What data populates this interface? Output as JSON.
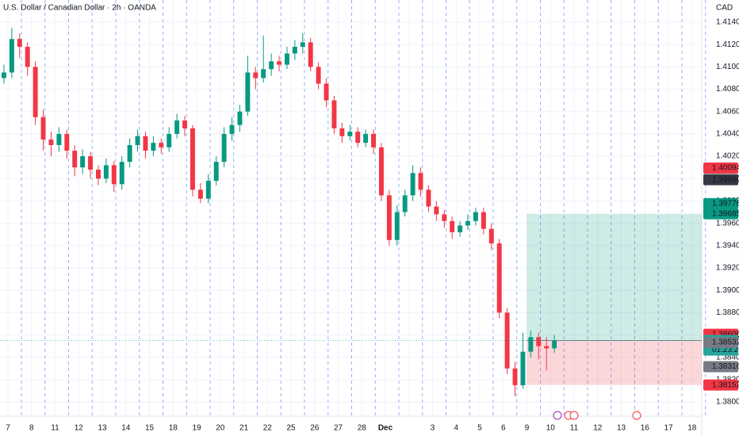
{
  "chart_data": {
    "type": "candlestick",
    "title": "U.S. Dollar / Canadian Dollar · 2h · OANDA",
    "currency": "CAD",
    "categories": [
      "7",
      "8",
      "11",
      "12",
      "13",
      "14",
      "15",
      "18",
      "19",
      "20",
      "21",
      "22",
      "25",
      "26",
      "27",
      "28",
      "Dec",
      null,
      "3",
      "4",
      "5",
      "6",
      "9",
      "10",
      "11",
      "12",
      "13",
      "16",
      "17",
      "18"
    ],
    "candles_per_category": 3,
    "up_color": "#089981",
    "down_color": "#f23645",
    "ohlc": [
      [
        1.409,
        1.4102,
        1.4085,
        1.4095
      ],
      [
        1.4095,
        1.4135,
        1.409,
        1.4125
      ],
      [
        1.4125,
        1.413,
        1.4108,
        1.4118
      ],
      [
        1.4118,
        1.4122,
        1.4092,
        1.41
      ],
      [
        1.41,
        1.4105,
        1.4048,
        1.4055
      ],
      [
        1.4055,
        1.4062,
        1.4025,
        1.4035
      ],
      [
        1.4035,
        1.4042,
        1.402,
        1.403
      ],
      [
        1.403,
        1.4046,
        1.4024,
        1.404
      ],
      [
        1.404,
        1.4044,
        1.4018,
        1.4025
      ],
      [
        1.4025,
        1.403,
        1.4002,
        1.401
      ],
      [
        1.401,
        1.4026,
        1.4004,
        1.402
      ],
      [
        1.402,
        1.4024,
        1.4,
        1.4008
      ],
      [
        1.4008,
        1.4012,
        1.3994,
        1.4
      ],
      [
        1.4,
        1.4018,
        1.3996,
        1.4012
      ],
      [
        1.4012,
        1.4016,
        1.3988,
        1.3995
      ],
      [
        1.3995,
        1.402,
        1.399,
        1.4015
      ],
      [
        1.4015,
        1.4036,
        1.401,
        1.403
      ],
      [
        1.403,
        1.4044,
        1.4024,
        1.4038
      ],
      [
        1.4038,
        1.4042,
        1.4018,
        1.4025
      ],
      [
        1.4025,
        1.4038,
        1.402,
        1.4032
      ],
      [
        1.4032,
        1.4036,
        1.4022,
        1.4028
      ],
      [
        1.4028,
        1.4046,
        1.4024,
        1.404
      ],
      [
        1.404,
        1.4058,
        1.4036,
        1.4052
      ],
      [
        1.4052,
        1.4056,
        1.4038,
        1.4045
      ],
      [
        1.4045,
        1.4048,
        1.3984,
        1.399
      ],
      [
        1.399,
        1.3996,
        1.3978,
        1.3982
      ],
      [
        1.3982,
        1.4004,
        1.3978,
        1.3998
      ],
      [
        1.3998,
        1.402,
        1.3994,
        1.4015
      ],
      [
        1.4015,
        1.4046,
        1.401,
        1.404
      ],
      [
        1.404,
        1.4055,
        1.4034,
        1.4048
      ],
      [
        1.4048,
        1.4066,
        1.4042,
        1.406
      ],
      [
        1.406,
        1.411,
        1.4056,
        1.4095
      ],
      [
        1.4095,
        1.41,
        1.408,
        1.409
      ],
      [
        1.409,
        1.4128,
        1.4086,
        1.4098
      ],
      [
        1.4098,
        1.4112,
        1.4092,
        1.4105
      ],
      [
        1.4105,
        1.411,
        1.4096,
        1.4102
      ],
      [
        1.4102,
        1.4118,
        1.4098,
        1.4112
      ],
      [
        1.4112,
        1.4124,
        1.4106,
        1.4118
      ],
      [
        1.4118,
        1.413,
        1.4112,
        1.4122
      ],
      [
        1.4122,
        1.4126,
        1.4096,
        1.41
      ],
      [
        1.41,
        1.4104,
        1.408,
        1.4085
      ],
      [
        1.4085,
        1.409,
        1.4064,
        1.407
      ],
      [
        1.407,
        1.4074,
        1.404,
        1.4045
      ],
      [
        1.4045,
        1.405,
        1.4032,
        1.4038
      ],
      [
        1.4038,
        1.4048,
        1.4034,
        1.4042
      ],
      [
        1.4042,
        1.4046,
        1.4028,
        1.4032
      ],
      [
        1.4032,
        1.4044,
        1.4028,
        1.404
      ],
      [
        1.404,
        1.4044,
        1.4022,
        1.4028
      ],
      [
        1.4028,
        1.4032,
        1.398,
        1.3985
      ],
      [
        1.3985,
        1.399,
        1.394,
        1.3945
      ],
      [
        1.3945,
        1.3976,
        1.394,
        1.397
      ],
      [
        1.397,
        1.399,
        1.3966,
        1.3985
      ],
      [
        1.3985,
        1.4012,
        1.398,
        1.4005
      ],
      [
        1.4005,
        1.401,
        1.3984,
        1.399
      ],
      [
        1.399,
        1.3994,
        1.397,
        1.3975
      ],
      [
        1.3975,
        1.398,
        1.3962,
        1.3968
      ],
      [
        1.3968,
        1.3972,
        1.3956,
        1.3962
      ],
      [
        1.3962,
        1.3966,
        1.3946,
        1.3952
      ],
      [
        1.3952,
        1.3962,
        1.3948,
        1.3958
      ],
      [
        1.3958,
        1.3968,
        1.3954,
        1.3962
      ],
      [
        1.3962,
        1.3974,
        1.3958,
        1.397
      ],
      [
        1.397,
        1.3974,
        1.395,
        1.3955
      ],
      [
        1.3955,
        1.396,
        1.3936,
        1.3942
      ],
      [
        1.3942,
        1.3946,
        1.3875,
        1.388
      ],
      [
        1.388,
        1.3884,
        1.3825,
        1.383
      ],
      [
        1.383,
        1.3836,
        1.3805,
        1.3815
      ],
      [
        1.3815,
        1.3862,
        1.3812,
        1.3845
      ],
      [
        1.3845,
        1.3864,
        1.384,
        1.3858
      ],
      [
        1.3858,
        1.3862,
        1.3838,
        1.385
      ],
      [
        1.385,
        1.3858,
        1.3828,
        1.3848
      ],
      [
        1.3848,
        1.386,
        1.3844,
        1.3855
      ]
    ],
    "ylim": [
      1.37908,
      1.41599
    ],
    "yticks": [
      {
        "value": 1.414,
        "label": "1.41400"
      },
      {
        "value": 1.412,
        "label": "1.41200"
      },
      {
        "value": 1.41,
        "label": "1.41000"
      },
      {
        "value": 1.408,
        "label": "1.40800"
      },
      {
        "value": 1.406,
        "label": "1.40600"
      },
      {
        "value": 1.404,
        "label": "1.40400"
      },
      {
        "value": 1.402,
        "label": "1.40200"
      },
      {
        "value": 1.4,
        "label": "1.40000"
      },
      {
        "value": 1.398,
        "label": "1.39800"
      },
      {
        "value": 1.396,
        "label": "1.39600"
      },
      {
        "value": 1.394,
        "label": "1.39400"
      },
      {
        "value": 1.392,
        "label": "1.39200"
      },
      {
        "value": 1.39,
        "label": "1.39000"
      },
      {
        "value": 1.388,
        "label": "1.38800"
      },
      {
        "value": 1.386,
        "label": "1.38600"
      },
      {
        "value": 1.384,
        "label": "1.38400"
      },
      {
        "value": 1.382,
        "label": "1.38200"
      },
      {
        "value": 1.38,
        "label": "1.38000"
      }
    ],
    "grid": true,
    "price_labels": [
      {
        "value": 1.40094,
        "label": "1.40094",
        "color": "#f23645"
      },
      {
        "value": 1.3999,
        "label": "1.39990",
        "color": "#363a45"
      },
      {
        "value": 1.39776,
        "label": "1.39776",
        "color": "#089981"
      },
      {
        "value": 1.39685,
        "label": "1.39685",
        "color": "#089981"
      },
      {
        "value": 1.38606,
        "label": "1.38606",
        "color": "#f23645"
      },
      {
        "value": 1.3855,
        "label": "1.38550",
        "color": "#26a69a",
        "countdown": "01:23:20"
      },
      {
        "value": 1.38532,
        "label": "1.38532",
        "color": "#787b86"
      },
      {
        "value": 1.38316,
        "label": "1.38316",
        "color": "#787b86"
      },
      {
        "value": 1.38152,
        "label": "1.38152",
        "color": "#f23645"
      }
    ],
    "position": {
      "entry": 1.3855,
      "target": 1.39685,
      "stop": 1.38152
    }
  }
}
